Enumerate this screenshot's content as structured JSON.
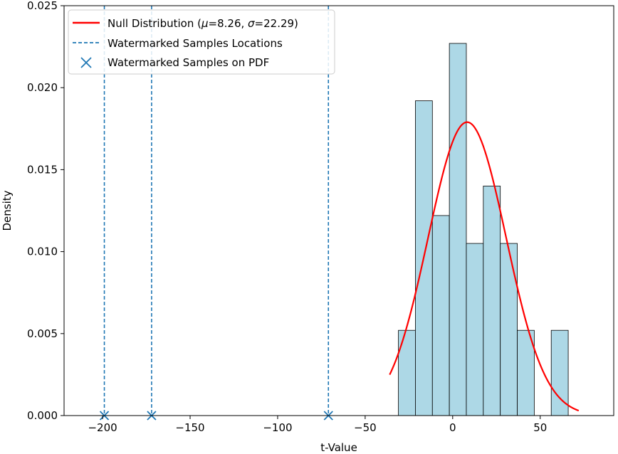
{
  "chart_data": {
    "type": "bar",
    "xlabel": "t-Value",
    "ylabel": "Density",
    "xlim": [
      -222,
      92
    ],
    "ylim": [
      0,
      0.025
    ],
    "x_ticks": [
      -200,
      -150,
      -100,
      -50,
      0,
      50
    ],
    "x_tick_labels": [
      "−200",
      "−150",
      "−100",
      "−50",
      "0",
      "50"
    ],
    "y_ticks": [
      0.0,
      0.005,
      0.01,
      0.015,
      0.02,
      0.025
    ],
    "y_tick_labels": [
      "0.000",
      "0.005",
      "0.010",
      "0.015",
      "0.020",
      "0.025"
    ],
    "grid": false,
    "legend_position": "upper-left",
    "histogram": {
      "color": "#add8e6",
      "edge_color": "#000000",
      "bins": [
        {
          "start": -31.0,
          "end": -21.3,
          "density": 0.0052
        },
        {
          "start": -21.3,
          "end": -11.6,
          "density": 0.0192
        },
        {
          "start": -11.6,
          "end": -1.9,
          "density": 0.0122
        },
        {
          "start": -1.9,
          "end": 7.8,
          "density": 0.0227
        },
        {
          "start": 7.8,
          "end": 17.5,
          "density": 0.0105
        },
        {
          "start": 17.5,
          "end": 27.2,
          "density": 0.014
        },
        {
          "start": 27.2,
          "end": 36.9,
          "density": 0.0105
        },
        {
          "start": 36.9,
          "end": 46.6,
          "density": 0.0052
        },
        {
          "start": 46.6,
          "end": 56.3,
          "density": 0.0
        },
        {
          "start": 56.3,
          "end": 66.0,
          "density": 0.0052
        }
      ]
    },
    "series": [
      {
        "name": "Null Distribution (μ=8.26, σ=22.29)",
        "kind": "normal-pdf",
        "mu": 8.26,
        "sigma": 22.29,
        "x_range": [
          -36,
          72
        ],
        "color": "#ff0000"
      },
      {
        "name": "Watermarked Samples Locations",
        "kind": "vertical-dashed-lines",
        "x": [
          -199,
          -172,
          -71
        ],
        "color": "#1f77b4"
      },
      {
        "name": "Watermarked Samples on PDF",
        "kind": "markers",
        "marker": "x",
        "x": [
          -199,
          -172,
          -71
        ],
        "y": [
          0,
          0,
          0
        ],
        "color": "#1f77b4"
      }
    ],
    "legend": [
      {
        "label_prefix": "Null Distribution (",
        "mu_symbol": "μ",
        "mu_value": "=8.26, ",
        "sigma_symbol": "σ",
        "sigma_value": "=22.29)",
        "style": "solid-line",
        "color": "#ff0000"
      },
      {
        "label": "Watermarked Samples Locations",
        "style": "dashed-line",
        "color": "#1f77b4"
      },
      {
        "label": "Watermarked Samples on PDF",
        "style": "x-marker",
        "color": "#1f77b4"
      }
    ]
  }
}
